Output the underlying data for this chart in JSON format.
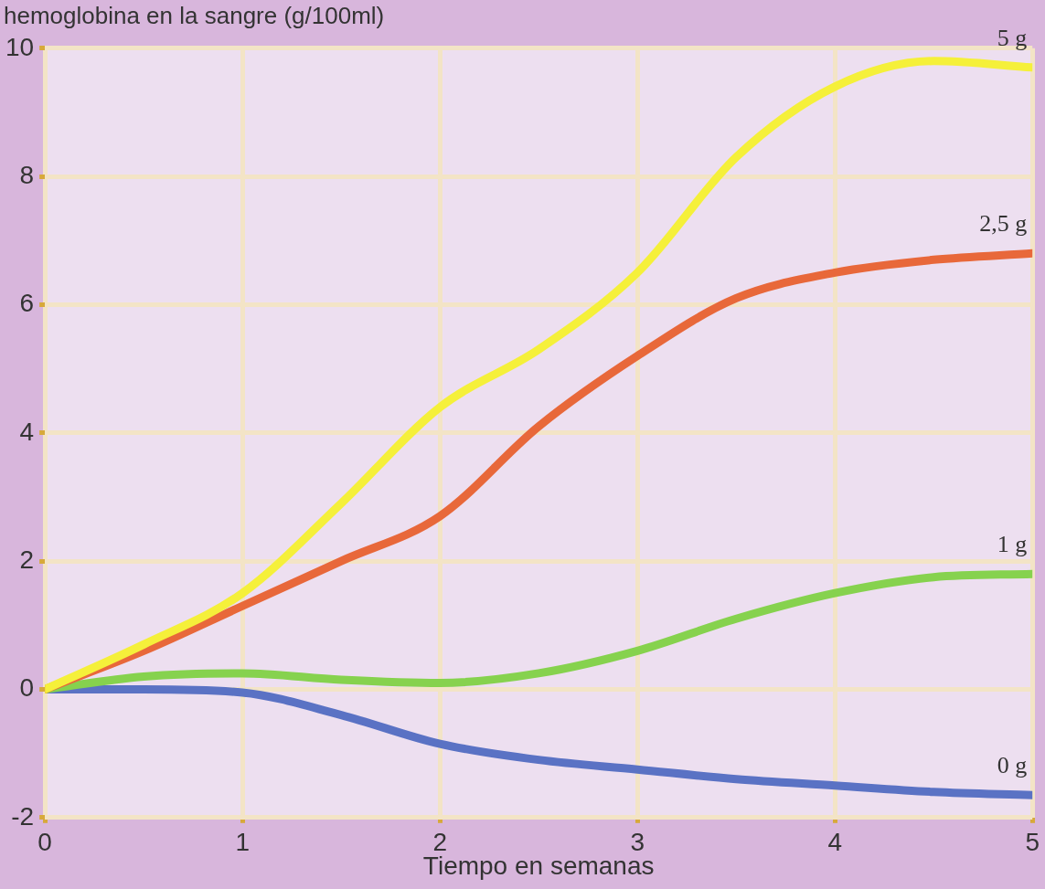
{
  "chart_data": {
    "type": "line",
    "ylabel": "hemoglobina en la sangre (g/100ml)",
    "xlabel": "Tiempo en semanas",
    "x": [
      0,
      0.5,
      1,
      1.5,
      2,
      2.5,
      3,
      3.5,
      4,
      4.5,
      5
    ],
    "series": [
      {
        "name": "5 g",
        "color": "#f5f03a",
        "values": [
          0,
          0.7,
          1.5,
          2.9,
          4.4,
          5.3,
          6.5,
          8.3,
          9.4,
          9.8,
          9.7
        ]
      },
      {
        "name": "2,5 g",
        "color": "#e8683a",
        "values": [
          0,
          0.6,
          1.3,
          2.0,
          2.7,
          4.1,
          5.2,
          6.1,
          6.5,
          6.7,
          6.8
        ]
      },
      {
        "name": "1 g",
        "color": "#86d24e",
        "values": [
          0,
          0.2,
          0.25,
          0.15,
          0.1,
          0.25,
          0.6,
          1.1,
          1.5,
          1.75,
          1.8
        ]
      },
      {
        "name": "0 g",
        "color": "#5a72c4",
        "values": [
          0,
          0,
          -0.05,
          -0.4,
          -0.85,
          -1.1,
          -1.25,
          -1.4,
          -1.5,
          -1.6,
          -1.65
        ]
      }
    ],
    "xlim": [
      0,
      5
    ],
    "xticks": [
      0,
      1,
      2,
      3,
      4,
      5
    ],
    "ylim": [
      -2,
      10
    ],
    "yticks": [
      -2,
      0,
      2,
      4,
      6,
      8,
      10
    ],
    "grid": true,
    "legend": false,
    "marker": "none",
    "line_style": "solid"
  }
}
